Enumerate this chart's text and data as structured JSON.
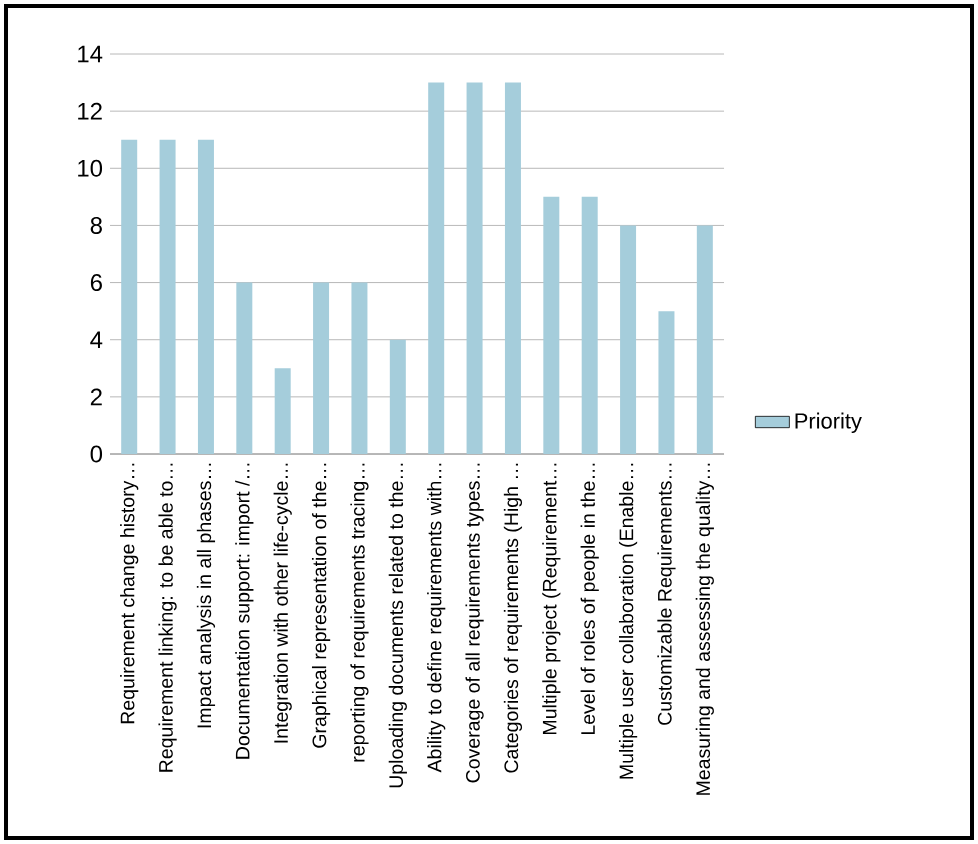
{
  "chart_data": {
    "type": "bar",
    "categories": [
      "Requirement change history…",
      "Requirement linking: to be able to…",
      "Impact analysis in all phases…",
      "Documentation support: import /…",
      "Integration with other life-cycle…",
      "Graphical representation of the…",
      "reporting of requirements tracing…",
      "Uploading documents related to the…",
      "Ability to define requirements with…",
      "Coverage of all requirements types…",
      "Categories of requirements (High …",
      "Multiple project (Requirement…",
      "Level of roles of people in the…",
      "Multiple user collaboration (Enable…",
      "Customizable Requirements…",
      "Measuring and assessing the quality…"
    ],
    "series": [
      {
        "name": "Priority",
        "color": "#a5cddb",
        "values": [
          11,
          11,
          11,
          6,
          3,
          6,
          6,
          4,
          13,
          13,
          13,
          9,
          9,
          8,
          5,
          8
        ]
      }
    ],
    "ylim": [
      0,
      14
    ],
    "yticks": [
      0,
      2,
      4,
      6,
      8,
      10,
      12,
      14
    ],
    "grid": "y",
    "legend": "right"
  }
}
